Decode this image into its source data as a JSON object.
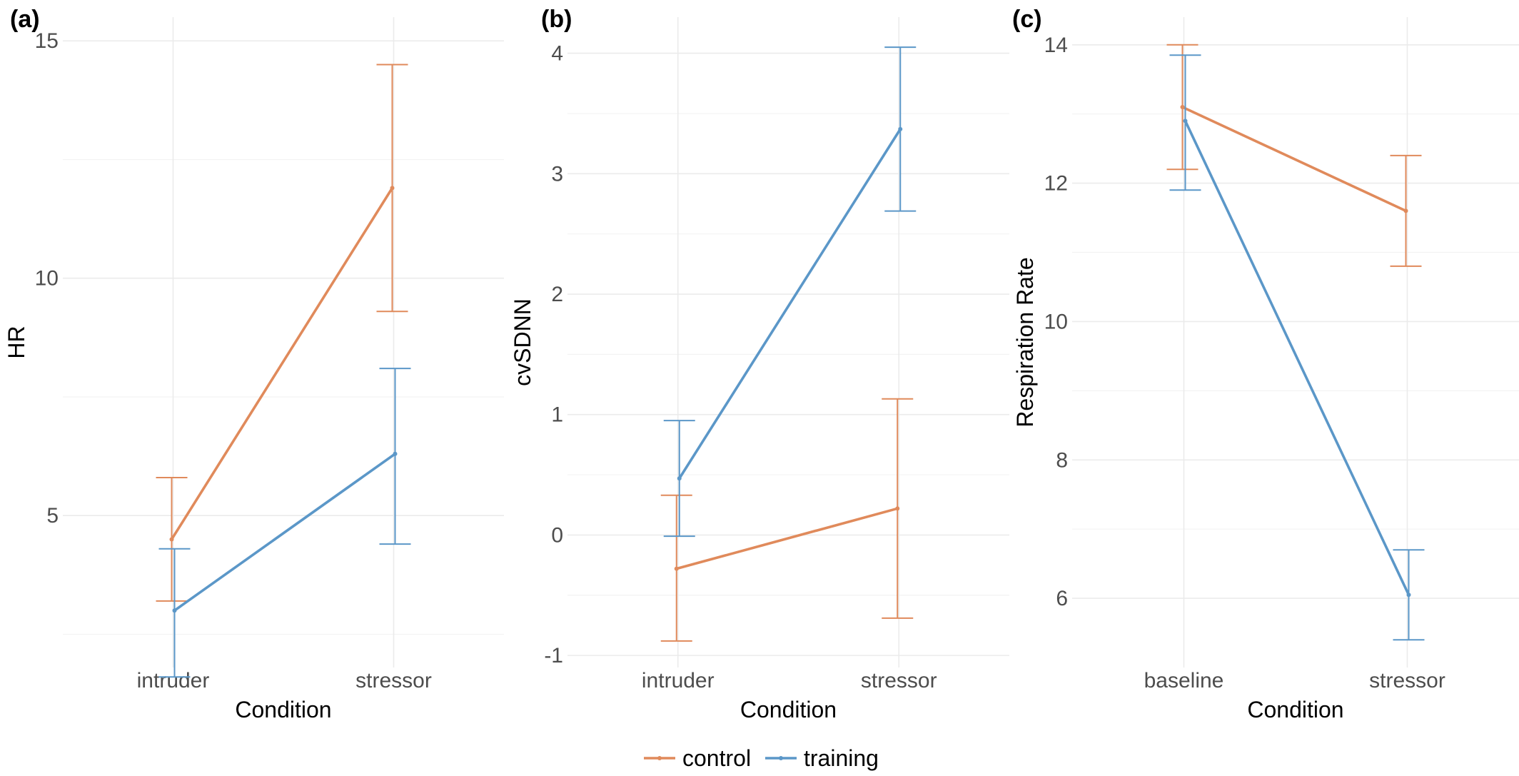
{
  "colors": {
    "control": "#e08a5b",
    "training": "#5b97c8"
  },
  "legend": {
    "items": [
      {
        "key": "control",
        "label": "control"
      },
      {
        "key": "training",
        "label": "training"
      }
    ]
  },
  "chart_data": [
    {
      "type": "line",
      "panel_label": "(a)",
      "xlabel": "Condition",
      "ylabel": "HR",
      "categories": [
        "intruder",
        "stressor"
      ],
      "ylim": [
        1.8,
        15.5
      ],
      "yticks": [
        5,
        10,
        15
      ],
      "yticks_minor": [
        2.5,
        7.5,
        12.5
      ],
      "series": [
        {
          "name": "control",
          "values": [
            4.5,
            11.9
          ],
          "lower": [
            3.2,
            9.3
          ],
          "upper": [
            5.8,
            14.5
          ]
        },
        {
          "name": "training",
          "values": [
            3.0,
            6.3
          ],
          "lower": [
            1.6,
            4.4
          ],
          "upper": [
            4.3,
            8.1
          ]
        }
      ]
    },
    {
      "type": "line",
      "panel_label": "(b)",
      "xlabel": "Condition",
      "ylabel": "cvSDNN",
      "categories": [
        "intruder",
        "stressor"
      ],
      "ylim": [
        -1.1,
        4.3
      ],
      "yticks": [
        -1,
        0,
        1,
        2,
        3,
        4
      ],
      "yticks_minor": [
        -0.5,
        0.5,
        1.5,
        2.5,
        3.5
      ],
      "series": [
        {
          "name": "control",
          "values": [
            -0.28,
            0.22
          ],
          "lower": [
            -0.88,
            -0.69
          ],
          "upper": [
            0.33,
            1.13
          ]
        },
        {
          "name": "training",
          "values": [
            0.47,
            3.37
          ],
          "lower": [
            -0.01,
            2.69
          ],
          "upper": [
            0.95,
            4.05
          ]
        }
      ]
    },
    {
      "type": "line",
      "panel_label": "(c)",
      "xlabel": "Condition",
      "ylabel": "Respiration Rate",
      "categories": [
        "baseline",
        "stressor"
      ],
      "ylim": [
        5.0,
        14.4
      ],
      "yticks": [
        6,
        8,
        10,
        12,
        14
      ],
      "yticks_minor": [
        7,
        9,
        11,
        13
      ],
      "series": [
        {
          "name": "control",
          "values": [
            13.1,
            11.6
          ],
          "lower": [
            12.2,
            10.8
          ],
          "upper": [
            14.0,
            12.4
          ]
        },
        {
          "name": "training",
          "values": [
            12.9,
            6.05
          ],
          "lower": [
            11.9,
            5.4
          ],
          "upper": [
            13.85,
            6.7
          ]
        }
      ]
    }
  ]
}
